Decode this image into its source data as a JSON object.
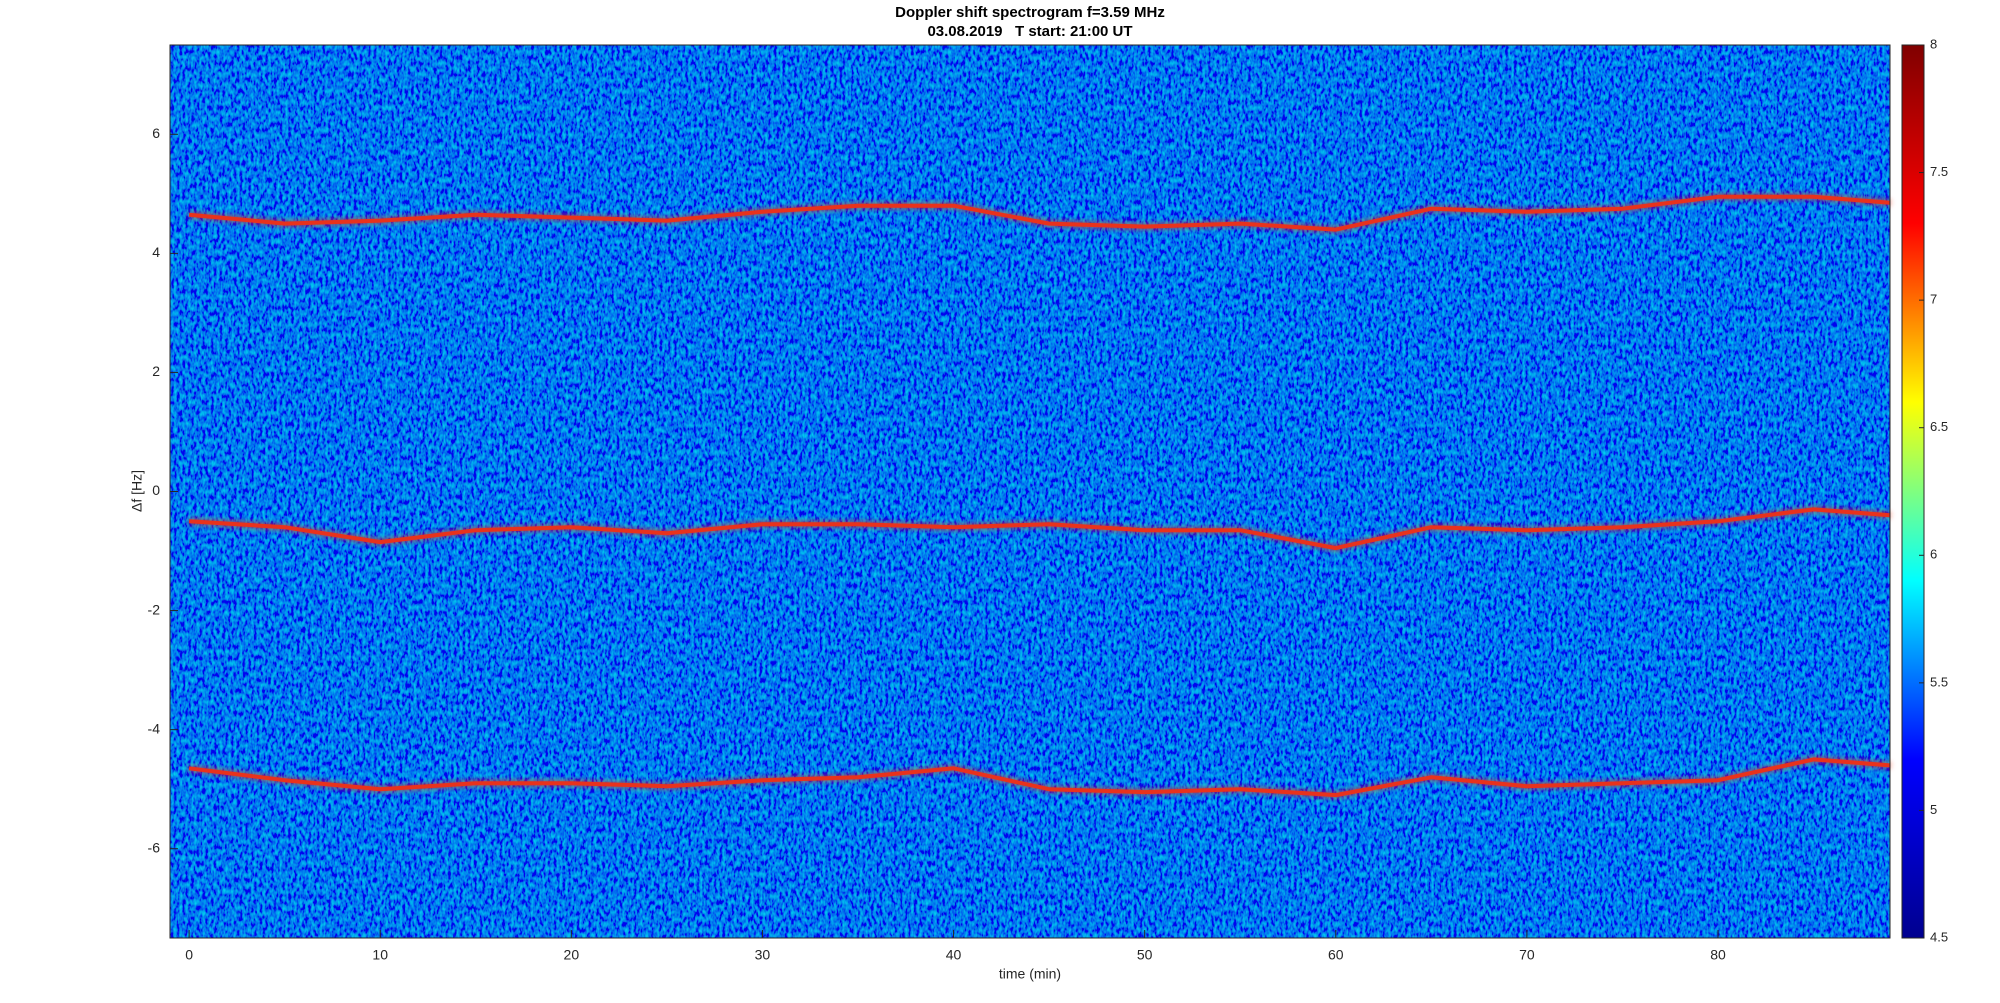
{
  "chart_data": {
    "type": "line",
    "title": "Doppler shift spectrogram f=3.59 MHz",
    "subtitle": "03.08.2019   T start: 21:00 UT",
    "xlabel": "time (min)",
    "ylabel": "Δf [Hz]",
    "x": [
      0,
      5,
      10,
      15,
      20,
      25,
      30,
      35,
      40,
      45,
      50,
      55,
      60,
      65,
      70,
      75,
      80,
      85,
      89
    ],
    "series": [
      {
        "color": "#e8321e",
        "values": [
          4.65,
          4.5,
          4.55,
          4.65,
          4.6,
          4.55,
          4.7,
          4.8,
          4.8,
          4.5,
          4.45,
          4.5,
          4.4,
          4.75,
          4.7,
          4.75,
          4.95,
          4.95,
          4.85
        ]
      },
      {
        "color": "#e8321e",
        "values": [
          -0.5,
          -0.6,
          -0.85,
          -0.65,
          -0.6,
          -0.7,
          -0.55,
          -0.55,
          -0.6,
          -0.55,
          -0.65,
          -0.65,
          -0.95,
          -0.6,
          -0.65,
          -0.6,
          -0.5,
          -0.3,
          -0.4
        ]
      },
      {
        "color": "#e8321e",
        "values": [
          -4.65,
          -4.85,
          -5.0,
          -4.9,
          -4.9,
          -4.95,
          -4.85,
          -4.8,
          -4.65,
          -5.0,
          -5.05,
          -5.0,
          -5.1,
          -4.8,
          -4.95,
          -4.9,
          -4.85,
          -4.5,
          -4.6
        ]
      }
    ],
    "xlim": [
      -1,
      89
    ],
    "xticks": [
      0,
      10,
      20,
      30,
      40,
      50,
      60,
      70,
      80
    ],
    "ylim": [
      -7.5,
      7.5
    ],
    "yticks": [
      -6,
      -4,
      -2,
      0,
      2,
      4,
      6
    ],
    "colorbar": {
      "lim": [
        4.5,
        8
      ],
      "ticks": [
        4.5,
        5,
        5.5,
        6,
        6.5,
        7,
        7.5,
        8
      ],
      "colormap": [
        "#00008f",
        "#0000ff",
        "#00ffff",
        "#ffff00",
        "#ff0000",
        "#800000"
      ]
    }
  }
}
